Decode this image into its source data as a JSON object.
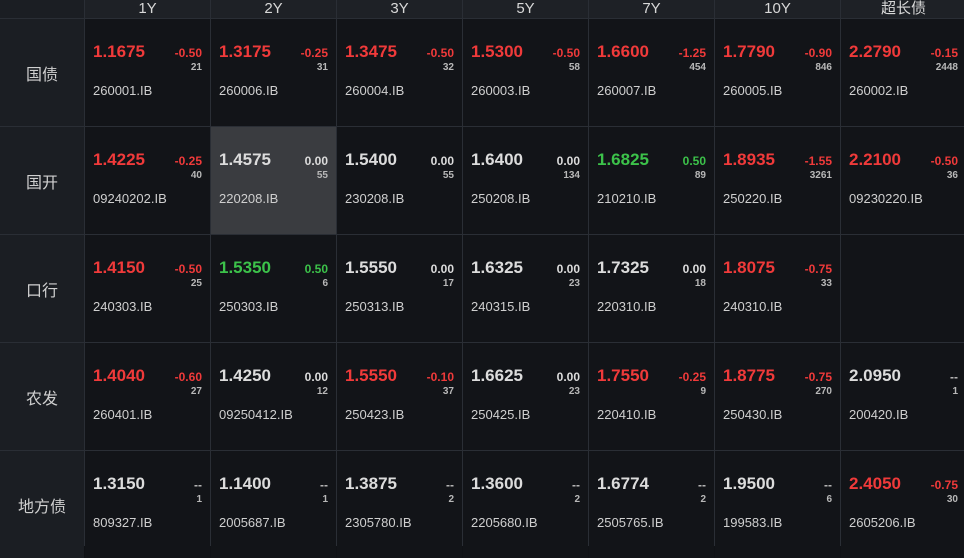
{
  "colors": {
    "up": "#f03a3a",
    "down": "#3cc24a",
    "neutral": "#dcdcdc",
    "selected": "#3a3c40"
  },
  "columns": [
    "1Y",
    "2Y",
    "3Y",
    "5Y",
    "7Y",
    "10Y",
    "超长债"
  ],
  "rows": [
    {
      "label": "国债",
      "cells": [
        {
          "yield": "1.1675",
          "change": "-0.50",
          "volume": "21",
          "code": "260001.IB",
          "color": "red"
        },
        {
          "yield": "1.3175",
          "change": "-0.25",
          "volume": "31",
          "code": "260006.IB",
          "color": "red"
        },
        {
          "yield": "1.3475",
          "change": "-0.50",
          "volume": "32",
          "code": "260004.IB",
          "color": "red"
        },
        {
          "yield": "1.5300",
          "change": "-0.50",
          "volume": "58",
          "code": "260003.IB",
          "color": "red"
        },
        {
          "yield": "1.6600",
          "change": "-1.25",
          "volume": "454",
          "code": "260007.IB",
          "color": "red"
        },
        {
          "yield": "1.7790",
          "change": "-0.90",
          "volume": "846",
          "code": "260005.IB",
          "color": "red"
        },
        {
          "yield": "2.2790",
          "change": "-0.15",
          "volume": "2448",
          "code": "260002.IB",
          "color": "red"
        }
      ]
    },
    {
      "label": "国开",
      "cells": [
        {
          "yield": "1.4225",
          "change": "-0.25",
          "volume": "40",
          "code": "09240202.IB",
          "color": "red"
        },
        {
          "yield": "1.4575",
          "change": "0.00",
          "volume": "55",
          "code": "220208.IB",
          "color": "white",
          "selected": true
        },
        {
          "yield": "1.5400",
          "change": "0.00",
          "volume": "55",
          "code": "230208.IB",
          "color": "white"
        },
        {
          "yield": "1.6400",
          "change": "0.00",
          "volume": "134",
          "code": "250208.IB",
          "color": "white"
        },
        {
          "yield": "1.6825",
          "change": "0.50",
          "volume": "89",
          "code": "210210.IB",
          "color": "green"
        },
        {
          "yield": "1.8935",
          "change": "-1.55",
          "volume": "3261",
          "code": "250220.IB",
          "color": "red"
        },
        {
          "yield": "2.2100",
          "change": "-0.50",
          "volume": "36",
          "code": "09230220.IB",
          "color": "red"
        }
      ]
    },
    {
      "label": "口行",
      "cells": [
        {
          "yield": "1.4150",
          "change": "-0.50",
          "volume": "25",
          "code": "240303.IB",
          "color": "red"
        },
        {
          "yield": "1.5350",
          "change": "0.50",
          "volume": "6",
          "code": "250303.IB",
          "color": "green"
        },
        {
          "yield": "1.5550",
          "change": "0.00",
          "volume": "17",
          "code": "250313.IB",
          "color": "white"
        },
        {
          "yield": "1.6325",
          "change": "0.00",
          "volume": "23",
          "code": "240315.IB",
          "color": "white"
        },
        {
          "yield": "1.7325",
          "change": "0.00",
          "volume": "18",
          "code": "220310.IB",
          "color": "white"
        },
        {
          "yield": "1.8075",
          "change": "-0.75",
          "volume": "33",
          "code": "240310.IB",
          "color": "red"
        },
        null
      ]
    },
    {
      "label": "农发",
      "cells": [
        {
          "yield": "1.4040",
          "change": "-0.60",
          "volume": "27",
          "code": "260401.IB",
          "color": "red"
        },
        {
          "yield": "1.4250",
          "change": "0.00",
          "volume": "12",
          "code": "09250412.IB",
          "color": "white"
        },
        {
          "yield": "1.5550",
          "change": "-0.10",
          "volume": "37",
          "code": "250423.IB",
          "color": "red"
        },
        {
          "yield": "1.6625",
          "change": "0.00",
          "volume": "23",
          "code": "250425.IB",
          "color": "white"
        },
        {
          "yield": "1.7550",
          "change": "-0.25",
          "volume": "9",
          "code": "220410.IB",
          "color": "red"
        },
        {
          "yield": "1.8775",
          "change": "-0.75",
          "volume": "270",
          "code": "250430.IB",
          "color": "red"
        },
        {
          "yield": "2.0950",
          "change": "--",
          "volume": "1",
          "code": "200420.IB",
          "color": "white"
        }
      ]
    },
    {
      "label": "地方债",
      "cells": [
        {
          "yield": "1.3150",
          "change": "--",
          "volume": "1",
          "code": "809327.IB",
          "color": "white"
        },
        {
          "yield": "1.1400",
          "change": "--",
          "volume": "1",
          "code": "2005687.IB",
          "color": "white"
        },
        {
          "yield": "1.3875",
          "change": "--",
          "volume": "2",
          "code": "2305780.IB",
          "color": "white"
        },
        {
          "yield": "1.3600",
          "change": "--",
          "volume": "2",
          "code": "2205680.IB",
          "color": "white"
        },
        {
          "yield": "1.6774",
          "change": "--",
          "volume": "2",
          "code": "2505765.IB",
          "color": "white"
        },
        {
          "yield": "1.9500",
          "change": "--",
          "volume": "6",
          "code": "199583.IB",
          "color": "white"
        },
        {
          "yield": "2.4050",
          "change": "-0.75",
          "volume": "30",
          "code": "2605206.IB",
          "color": "red"
        }
      ]
    }
  ]
}
